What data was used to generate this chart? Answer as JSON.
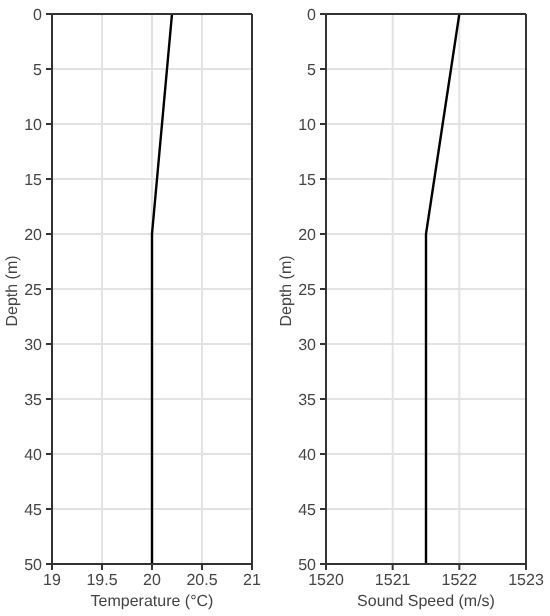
{
  "chart_data": [
    {
      "type": "line",
      "xlabel": "Temperature (°C)",
      "ylabel": "Depth (m)",
      "xlim": [
        19,
        21
      ],
      "xticks": [
        19,
        19.5,
        20,
        20.5,
        21
      ],
      "ylim": [
        50,
        0
      ],
      "yticks": [
        0,
        5,
        10,
        15,
        20,
        25,
        30,
        35,
        40,
        45,
        50
      ],
      "grid": true,
      "series": [
        {
          "color": "#000000",
          "x": [
            20.2,
            20,
            20
          ],
          "values": [
            0,
            20,
            50
          ]
        }
      ]
    },
    {
      "type": "line",
      "xlabel": "Sound Speed (m/s)",
      "ylabel": "Depth (m)",
      "xlim": [
        1520,
        1523
      ],
      "xticks": [
        1520,
        1521,
        1522,
        1523
      ],
      "ylim": [
        50,
        0
      ],
      "yticks": [
        0,
        5,
        10,
        15,
        20,
        25,
        30,
        35,
        40,
        45,
        50
      ],
      "grid": true,
      "series": [
        {
          "color": "#000000",
          "x": [
            1522,
            1521.5,
            1521.5
          ],
          "values": [
            0,
            20,
            50
          ]
        }
      ]
    }
  ]
}
